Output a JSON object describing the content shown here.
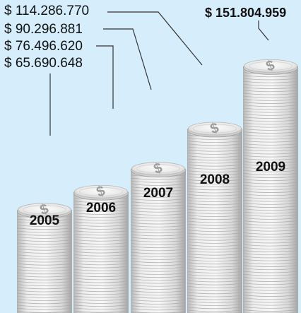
{
  "chart_data": {
    "type": "bar",
    "categories": [
      "2005",
      "2006",
      "2007",
      "2008",
      "2009"
    ],
    "values": [
      65690648,
      76496620,
      90296881,
      114286770,
      151804959
    ],
    "value_labels": [
      "$ 65.690.648",
      "$ 76.496.620",
      "$ 90.296.881",
      "$ 114.286.770",
      "$ 151.804.959"
    ],
    "title": "",
    "xlabel": "",
    "ylabel": "",
    "ylim": [
      0,
      160000000
    ],
    "grid": false,
    "legend": "top-left",
    "marker_icon": "dollar-coin-icon",
    "colors": {
      "background": "#d6eefb",
      "coin_light": "#f4f4f4",
      "coin_mid": "#d8d8d8",
      "coin_dark": "#a9a9a9",
      "text": "#111111",
      "leader": "#333333"
    }
  }
}
